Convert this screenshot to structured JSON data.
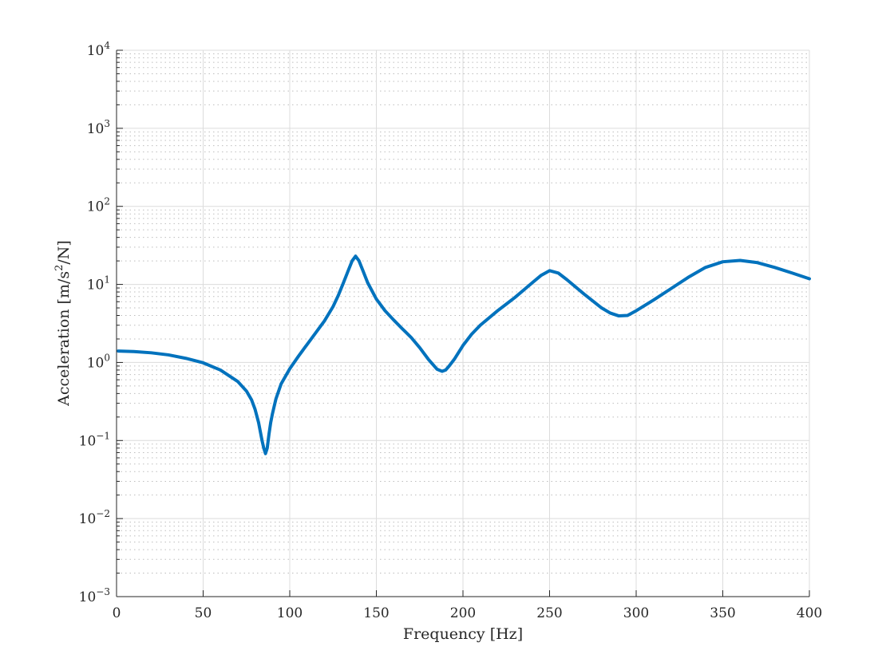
{
  "chart_data": {
    "type": "line",
    "title": "",
    "xlabel": "Frequency [Hz]",
    "ylabel_parts": {
      "before": "Acceleration [m/s",
      "sup": "2",
      "after": "/N]"
    },
    "xlim": [
      0,
      400
    ],
    "ylim": [
      0.001,
      10000
    ],
    "yscale": "log",
    "grid": true,
    "minor_grid": true,
    "x_ticks": [
      "0",
      "50",
      "100",
      "150",
      "200",
      "250",
      "300",
      "350",
      "400"
    ],
    "y_ticks": [
      {
        "base": "10",
        "exp": "4"
      },
      {
        "base": "10",
        "exp": "3"
      },
      {
        "base": "10",
        "exp": "2"
      },
      {
        "base": "10",
        "exp": "1"
      },
      {
        "base": "10",
        "exp": "0"
      },
      {
        "base": "10",
        "exp": "−1"
      },
      {
        "base": "10",
        "exp": "−2"
      },
      {
        "base": "10",
        "exp": "−3"
      }
    ],
    "series": [
      {
        "color": "#0072bd",
        "x": [
          1,
          10,
          20,
          30,
          40,
          50,
          60,
          70,
          75,
          78,
          80,
          82,
          84,
          85,
          86,
          87,
          88,
          89,
          90,
          92,
          95,
          100,
          105,
          110,
          115,
          120,
          125,
          128,
          131,
          134,
          136,
          138,
          140,
          142,
          145,
          150,
          155,
          160,
          165,
          170,
          175,
          180,
          185,
          188,
          190,
          192,
          195,
          200,
          205,
          210,
          220,
          230,
          240,
          245,
          250,
          255,
          260,
          270,
          280,
          285,
          290,
          295,
          300,
          310,
          320,
          330,
          340,
          350,
          360,
          370,
          380,
          390,
          400
        ],
        "y": [
          1.4,
          1.38,
          1.33,
          1.25,
          1.13,
          0.99,
          0.8,
          0.57,
          0.43,
          0.33,
          0.25,
          0.17,
          0.1,
          0.08,
          0.068,
          0.08,
          0.12,
          0.17,
          0.22,
          0.34,
          0.53,
          0.83,
          1.2,
          1.7,
          2.4,
          3.4,
          5.2,
          7.2,
          10.5,
          15.5,
          20,
          23,
          20,
          15.5,
          10.5,
          6.5,
          4.6,
          3.5,
          2.7,
          2.1,
          1.55,
          1.1,
          0.82,
          0.77,
          0.8,
          0.9,
          1.1,
          1.65,
          2.3,
          3.0,
          4.6,
          6.8,
          10.5,
          13,
          15,
          14,
          11.5,
          7.5,
          5.0,
          4.3,
          3.95,
          4.0,
          4.6,
          6.3,
          8.8,
          12.3,
          16.5,
          19.5,
          20.3,
          19,
          16.5,
          14,
          11.8
        ]
      }
    ]
  }
}
